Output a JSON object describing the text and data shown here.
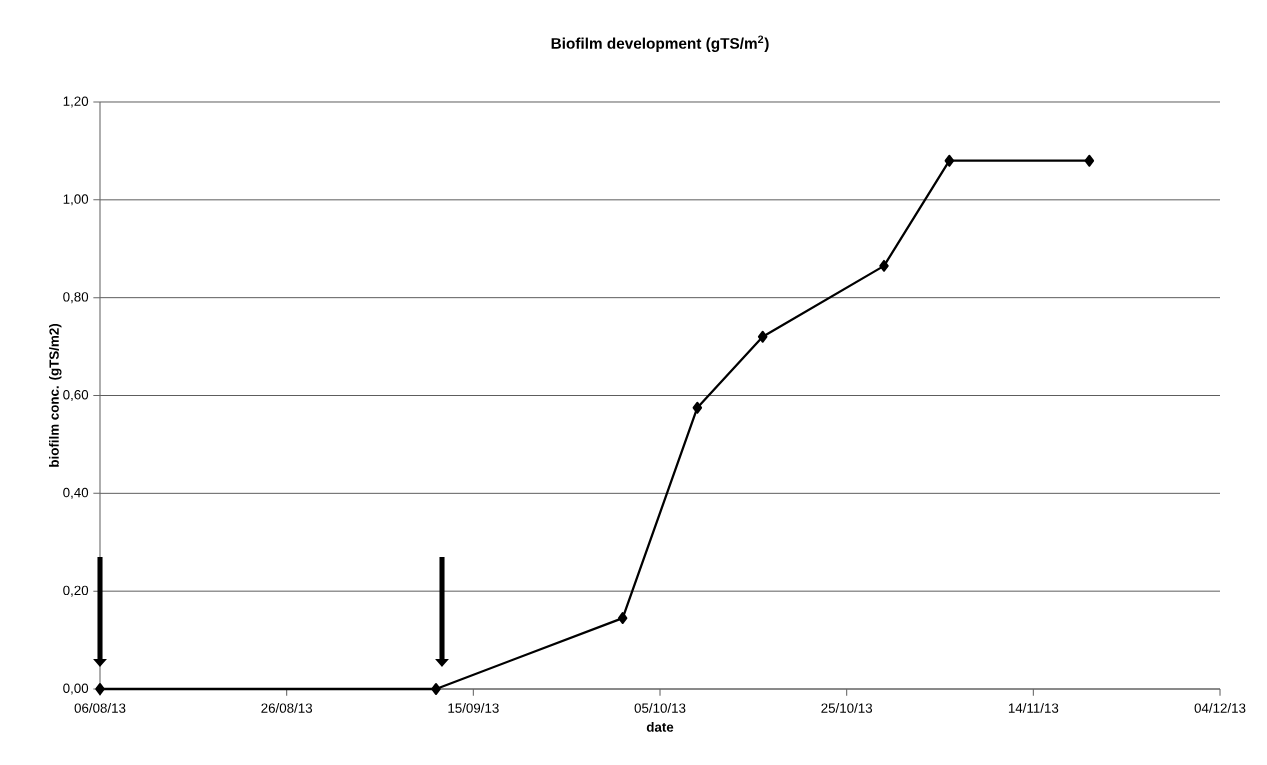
{
  "chart_data": {
    "type": "line",
    "title": "Biofilm development (gTS/m$^{2}$)",
    "xlabel": "date",
    "ylabel": "biofilm conc. (gTS/m2)",
    "x": [
      "2013-08-06",
      "2013-09-11",
      "2013-10-01",
      "2013-10-09",
      "2013-10-16",
      "2013-10-29",
      "2013-11-05",
      "2013-11-20"
    ],
    "values": [
      0,
      0,
      0.145,
      0.575,
      0.72,
      0.865,
      1.08,
      1.08
    ],
    "color": "#000000",
    "marker": "diamond",
    "line_style": "solid",
    "grid": "y",
    "xlim": [
      "2013-08-06",
      "2013-12-04"
    ],
    "xticks": [
      {
        "value": "2013-08-06",
        "label": "06/08/13"
      },
      {
        "value": "2013-08-26",
        "label": "26/08/13"
      },
      {
        "value": "2013-09-15",
        "label": "15/09/13"
      },
      {
        "value": "2013-10-05",
        "label": "05/10/13"
      },
      {
        "value": "2013-10-25",
        "label": "25/10/13"
      },
      {
        "value": "2013-11-14",
        "label": "14/11/13"
      },
      {
        "value": "2013-12-04",
        "label": "04/12/13"
      }
    ],
    "ylim": [
      0,
      1.2
    ],
    "yticks": [
      {
        "value": 0,
        "label": "0,00"
      },
      {
        "value": 0.2,
        "label": "0,20"
      },
      {
        "value": 0.4,
        "label": "0,40"
      },
      {
        "value": 0.6,
        "label": "0,60"
      },
      {
        "value": 0.8,
        "label": "0,80"
      },
      {
        "value": 1.0,
        "label": "1,00"
      },
      {
        "value": 1.2,
        "label": "1,20"
      }
    ]
  }
}
